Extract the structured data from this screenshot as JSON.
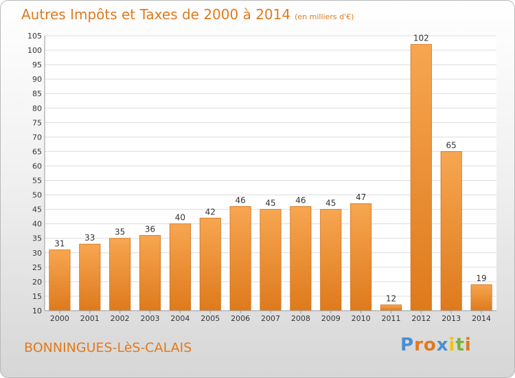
{
  "chart_data": {
    "type": "bar",
    "title": "Autres Impôts et Taxes de 2000 à 2014",
    "subtitle": "(en milliers d'€)",
    "categories": [
      "2000",
      "2001",
      "2002",
      "2003",
      "2004",
      "2005",
      "2006",
      "2007",
      "2008",
      "2009",
      "2010",
      "2011",
      "2012",
      "2013",
      "2014"
    ],
    "values": [
      31,
      33,
      35,
      36,
      40,
      42,
      46,
      45,
      46,
      45,
      47,
      12,
      102,
      65,
      19
    ],
    "ylim": [
      10,
      105
    ],
    "yticks": [
      10,
      15,
      20,
      25,
      30,
      35,
      40,
      45,
      50,
      55,
      60,
      65,
      70,
      75,
      80,
      85,
      90,
      95,
      100,
      105
    ],
    "grid": true,
    "bar_color": "#f0922e",
    "xlabel": "",
    "ylabel": ""
  },
  "footer": {
    "commune": "BONNINGUES-LèS-CALAIS",
    "logo": {
      "letters": [
        "P",
        "r",
        "o",
        "x",
        "i",
        "t",
        "i"
      ],
      "colors": [
        "#4a8fd0",
        "#e07a1d",
        "#e07a1d",
        "#4a8fd0",
        "#f2c400",
        "#7bb23a",
        "#e07a1d"
      ]
    }
  },
  "colors": {
    "accent": "#e07a1d",
    "grid": "#dcdcdc"
  }
}
